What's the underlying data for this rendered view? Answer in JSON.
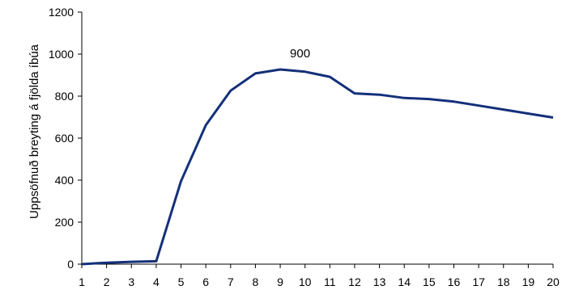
{
  "chart_data": {
    "type": "line",
    "title": "",
    "xlabel": "",
    "ylabel": "Uppsöfnuð breyting á fjölda íbúa",
    "x": [
      1,
      2,
      3,
      4,
      5,
      6,
      7,
      8,
      9,
      10,
      11,
      12,
      13,
      14,
      15,
      16,
      17,
      18,
      19,
      20
    ],
    "series": [
      {
        "values": [
          0,
          7,
          11,
          14,
          395,
          662,
          826,
          908,
          927,
          916,
          892,
          813,
          807,
          791,
          786,
          774,
          755,
          736,
          717,
          698
        ],
        "color": "#14307a"
      }
    ],
    "ylim": [
      0,
      1200
    ],
    "yticks": [
      0,
      200,
      400,
      600,
      800,
      1000,
      1200
    ],
    "grid": false,
    "legend": "none",
    "annotations": [
      {
        "text": "900",
        "x": 9.8,
        "y": 985
      }
    ]
  }
}
